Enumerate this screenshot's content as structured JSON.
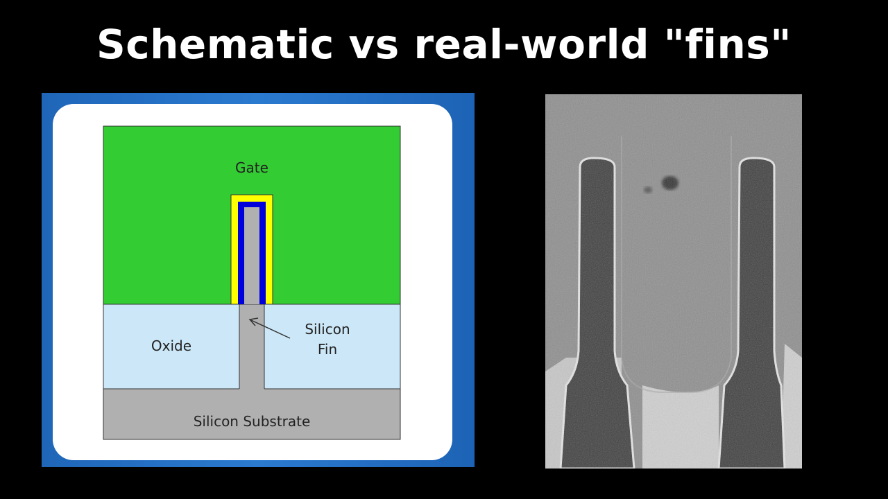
{
  "slide": {
    "title": "Schematic vs real-world \"fins\""
  },
  "schematic": {
    "labels": {
      "gate": "Gate",
      "oxide": "Oxide",
      "fin_line1": "Silicon",
      "fin_line2": "Fin",
      "substrate": "Silicon Substrate"
    },
    "colors": {
      "gate": "#33cc33",
      "oxide": "#cce8f8",
      "silicon": "#b0b0b0",
      "gate_dielectric": "#ffff00",
      "fin_liner": "#0000dd",
      "panel_border": "#1f66b8"
    }
  },
  "micrograph": {
    "description_icon": "tem-cross-section-image"
  }
}
